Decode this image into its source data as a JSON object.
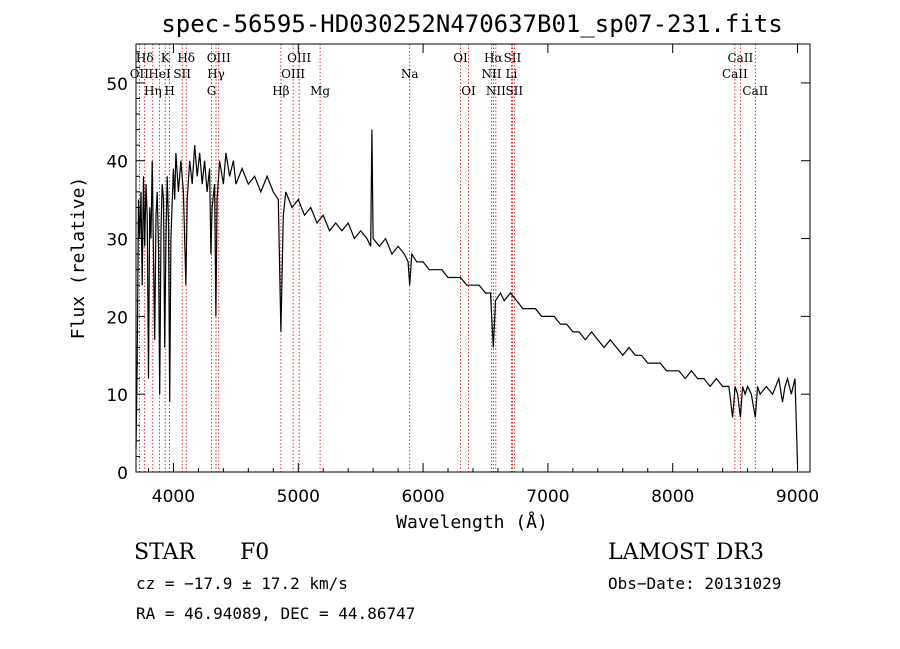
{
  "chart_data": {
    "type": "line",
    "title": "spec-56595-HD030252N470637B01_sp07-231.fits",
    "xlabel": "Wavelength (Å)",
    "ylabel": "Flux (relative)",
    "xlim": [
      3700,
      9100
    ],
    "ylim": [
      0,
      55
    ],
    "xticks": [
      4000,
      5000,
      6000,
      7000,
      8000,
      9000
    ],
    "yticks": [
      0,
      10,
      20,
      30,
      40,
      50
    ],
    "series": [
      {
        "name": "spectrum",
        "color": "#000000",
        "points": [
          [
            3700,
            3
          ],
          [
            3710,
            14
          ],
          [
            3720,
            35
          ],
          [
            3730,
            30
          ],
          [
            3740,
            36
          ],
          [
            3750,
            24
          ],
          [
            3760,
            38
          ],
          [
            3770,
            29
          ],
          [
            3780,
            37
          ],
          [
            3790,
            33
          ],
          [
            3800,
            12
          ],
          [
            3810,
            34
          ],
          [
            3820,
            30
          ],
          [
            3830,
            40
          ],
          [
            3840,
            28
          ],
          [
            3850,
            17
          ],
          [
            3860,
            33
          ],
          [
            3870,
            36
          ],
          [
            3880,
            29
          ],
          [
            3890,
            10
          ],
          [
            3900,
            31
          ],
          [
            3910,
            37
          ],
          [
            3920,
            35
          ],
          [
            3930,
            16
          ],
          [
            3940,
            30
          ],
          [
            3950,
            38
          ],
          [
            3960,
            32
          ],
          [
            3970,
            9
          ],
          [
            3980,
            30
          ],
          [
            4000,
            39
          ],
          [
            4010,
            35
          ],
          [
            4020,
            41
          ],
          [
            4040,
            36
          ],
          [
            4060,
            40
          ],
          [
            4080,
            36
          ],
          [
            4100,
            24
          ],
          [
            4110,
            35
          ],
          [
            4130,
            40
          ],
          [
            4150,
            37
          ],
          [
            4170,
            42
          ],
          [
            4190,
            38
          ],
          [
            4210,
            41
          ],
          [
            4230,
            37
          ],
          [
            4250,
            40
          ],
          [
            4270,
            36
          ],
          [
            4290,
            39
          ],
          [
            4300,
            28
          ],
          [
            4310,
            34
          ],
          [
            4330,
            37
          ],
          [
            4340,
            20
          ],
          [
            4350,
            35
          ],
          [
            4370,
            40
          ],
          [
            4400,
            37
          ],
          [
            4420,
            41
          ],
          [
            4450,
            38
          ],
          [
            4480,
            40
          ],
          [
            4500,
            37
          ],
          [
            4550,
            39
          ],
          [
            4600,
            37
          ],
          [
            4650,
            38
          ],
          [
            4700,
            36
          ],
          [
            4750,
            38
          ],
          [
            4800,
            36
          ],
          [
            4840,
            35
          ],
          [
            4861,
            18
          ],
          [
            4880,
            33
          ],
          [
            4900,
            36
          ],
          [
            4950,
            34
          ],
          [
            5000,
            35
          ],
          [
            5050,
            33
          ],
          [
            5100,
            34
          ],
          [
            5150,
            32
          ],
          [
            5200,
            33
          ],
          [
            5250,
            31
          ],
          [
            5300,
            32
          ],
          [
            5350,
            31
          ],
          [
            5400,
            32
          ],
          [
            5450,
            30
          ],
          [
            5500,
            31
          ],
          [
            5550,
            30
          ],
          [
            5580,
            29
          ],
          [
            5590,
            44
          ],
          [
            5600,
            30
          ],
          [
            5650,
            29
          ],
          [
            5700,
            30
          ],
          [
            5750,
            28
          ],
          [
            5800,
            29
          ],
          [
            5850,
            28
          ],
          [
            5880,
            27
          ],
          [
            5893,
            24
          ],
          [
            5910,
            28
          ],
          [
            5950,
            27
          ],
          [
            6000,
            27
          ],
          [
            6050,
            26
          ],
          [
            6100,
            26
          ],
          [
            6150,
            26
          ],
          [
            6200,
            25
          ],
          [
            6250,
            25
          ],
          [
            6300,
            25
          ],
          [
            6350,
            24
          ],
          [
            6400,
            24
          ],
          [
            6450,
            24
          ],
          [
            6500,
            23
          ],
          [
            6540,
            23
          ],
          [
            6563,
            16
          ],
          [
            6580,
            22
          ],
          [
            6620,
            23
          ],
          [
            6650,
            22
          ],
          [
            6700,
            23
          ],
          [
            6750,
            22
          ],
          [
            6800,
            21
          ],
          [
            6850,
            21
          ],
          [
            6900,
            21
          ],
          [
            6950,
            20
          ],
          [
            7000,
            20
          ],
          [
            7050,
            20
          ],
          [
            7100,
            19
          ],
          [
            7150,
            19
          ],
          [
            7200,
            18
          ],
          [
            7250,
            18
          ],
          [
            7300,
            17
          ],
          [
            7350,
            18
          ],
          [
            7400,
            17
          ],
          [
            7450,
            16
          ],
          [
            7500,
            17
          ],
          [
            7550,
            16
          ],
          [
            7600,
            15
          ],
          [
            7650,
            16
          ],
          [
            7700,
            15
          ],
          [
            7750,
            15
          ],
          [
            7800,
            14
          ],
          [
            7850,
            14
          ],
          [
            7900,
            14
          ],
          [
            7950,
            13
          ],
          [
            8000,
            13
          ],
          [
            8050,
            13
          ],
          [
            8100,
            12
          ],
          [
            8150,
            13
          ],
          [
            8200,
            12
          ],
          [
            8250,
            12
          ],
          [
            8300,
            11
          ],
          [
            8350,
            12
          ],
          [
            8400,
            11
          ],
          [
            8450,
            11
          ],
          [
            8480,
            7
          ],
          [
            8500,
            11
          ],
          [
            8520,
            10
          ],
          [
            8542,
            7
          ],
          [
            8560,
            11
          ],
          [
            8580,
            10
          ],
          [
            8600,
            11
          ],
          [
            8630,
            10
          ],
          [
            8662,
            7
          ],
          [
            8680,
            11
          ],
          [
            8700,
            10
          ],
          [
            8750,
            11
          ],
          [
            8800,
            10
          ],
          [
            8850,
            12
          ],
          [
            8880,
            9
          ],
          [
            8900,
            11
          ],
          [
            8920,
            12
          ],
          [
            8950,
            10
          ],
          [
            8980,
            12
          ],
          [
            9000,
            1
          ]
        ]
      }
    ],
    "line_markers": [
      {
        "label": "Hδ",
        "wavelength": 3770,
        "row": 1
      },
      {
        "label": "OII",
        "wavelength": 3727,
        "row": 2
      },
      {
        "label": "Hη",
        "wavelength": 3835,
        "row": 3
      },
      {
        "label": "HeI",
        "wavelength": 3889,
        "row": 2
      },
      {
        "label": "K",
        "wavelength": 3934,
        "row": 1
      },
      {
        "label": "H",
        "wavelength": 3969,
        "row": 3
      },
      {
        "label": "SII",
        "wavelength": 4070,
        "row": 2
      },
      {
        "label": "Hδ",
        "wavelength": 4102,
        "row": 1
      },
      {
        "label": "G",
        "wavelength": 4305,
        "row": 3
      },
      {
        "label": "Hγ",
        "wavelength": 4341,
        "row": 2
      },
      {
        "label": "OIII",
        "wavelength": 4363,
        "row": 1
      },
      {
        "label": "Hβ",
        "wavelength": 4861,
        "row": 3
      },
      {
        "label": "OIII",
        "wavelength": 4959,
        "row": 2
      },
      {
        "label": "OIII",
        "wavelength": 5007,
        "row": 1
      },
      {
        "label": "Mg",
        "wavelength": 5175,
        "row": 3
      },
      {
        "label": "Na",
        "wavelength": 5893,
        "row": 2
      },
      {
        "label": "OI",
        "wavelength": 6300,
        "row": 1
      },
      {
        "label": "OI",
        "wavelength": 6364,
        "row": 3
      },
      {
        "label": "NII",
        "wavelength": 6548,
        "row": 2
      },
      {
        "label": "Hα",
        "wavelength": 6563,
        "row": 1
      },
      {
        "label": "NII",
        "wavelength": 6583,
        "row": 3
      },
      {
        "label": "Li",
        "wavelength": 6708,
        "row": 2
      },
      {
        "label": "SII",
        "wavelength": 6716,
        "row": 1
      },
      {
        "label": "SII",
        "wavelength": 6731,
        "row": 3
      },
      {
        "label": "CaII",
        "wavelength": 8498,
        "row": 2
      },
      {
        "label": "CaII",
        "wavelength": 8542,
        "row": 1
      },
      {
        "label": "CaII",
        "wavelength": 8662,
        "row": 3
      }
    ],
    "marker_color": "#cc0000"
  },
  "info": {
    "object_class": "STAR",
    "subclass": "F0",
    "survey": "LAMOST DR3",
    "cz": "cz = −17.9 ± 17.2 km/s",
    "obs_date": "Obs−Date: 20131029",
    "coords": "RA =  46.94089, DEC =  44.86747"
  }
}
